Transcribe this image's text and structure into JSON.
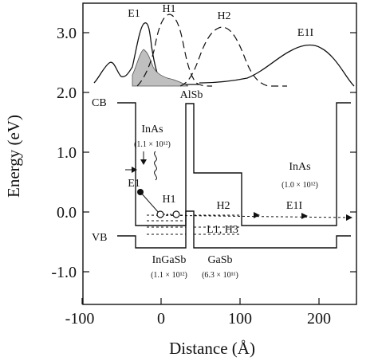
{
  "figure": {
    "ylabel": "Energy (eV)",
    "xlabel": "Distance (Å)",
    "yticks": [
      "3.0",
      "2.0",
      "1.0",
      "0.0",
      "-1.0"
    ],
    "xticks": [
      "-100",
      "0",
      "100",
      "200"
    ],
    "band_labels": {
      "cb": "CB",
      "vb": "VB"
    },
    "wavefunction_labels": {
      "e1": "E1",
      "h1": "H1",
      "h2": "H2",
      "e1i": "E1I"
    },
    "layers": {
      "alsb": "AlSb",
      "inas_left": "InAs",
      "inas_left_density": "(1.1 × 10¹²)",
      "inas_right": "InAs",
      "inas_right_density": "(1.0 × 10¹²)",
      "ingasb": "InGaSb",
      "ingasb_density": "(1.1 × 10¹²)",
      "gasb": "GaSb",
      "gasb_density": "(6.3 × 10¹¹)"
    },
    "level_labels": {
      "e1": "E1",
      "h1": "H1",
      "h2": "H2",
      "l1h3": "L1, H3",
      "e1i": "E1I"
    }
  },
  "chart_data": {
    "type": "line",
    "xlabel": "Distance (Å)",
    "ylabel": "Energy (eV)",
    "xlim": [
      -100,
      240
    ],
    "ylim": [
      -1.4,
      3.4
    ],
    "series": [
      {
        "name": "CB",
        "x": [
          -30,
          -30,
          32,
          32,
          42,
          42,
          104,
          104,
          220,
          220
        ],
        "y": [
          2.0,
          0.28,
          0.28,
          1.9,
          1.9,
          0.66,
          0.66,
          -0.18,
          -0.18,
          2.0
        ]
      },
      {
        "name": "VB",
        "x": [
          -30,
          -30,
          32,
          32,
          42,
          42,
          104,
          104,
          220,
          220
        ],
        "y": [
          -0.4,
          -0.58,
          -0.58,
          0.06,
          0.06,
          -0.58,
          -0.58,
          -0.58,
          -0.58,
          -0.4
        ]
      },
      {
        "name": "E1I level",
        "x": [
          -30,
          220
        ],
        "y": [
          -0.1,
          -0.1
        ]
      },
      {
        "name": "E1",
        "x": [
          -70,
          -55,
          -45,
          -30,
          -20,
          -12,
          -6,
          0,
          10,
          20,
          30
        ],
        "y": [
          2.05,
          2.35,
          2.2,
          2.45,
          3.0,
          3.2,
          2.8,
          2.3,
          2.1,
          2.05,
          2.0
        ]
      },
      {
        "name": "H1",
        "x": [
          -20,
          -10,
          0,
          10,
          20,
          30,
          40,
          50
        ],
        "y": [
          2.0,
          2.3,
          2.9,
          3.25,
          2.9,
          2.3,
          2.05,
          2.0
        ]
      },
      {
        "name": "H2",
        "x": [
          30,
          45,
          60,
          75,
          90,
          105,
          120
        ],
        "y": [
          2.0,
          2.35,
          2.85,
          3.05,
          2.85,
          2.3,
          2.0
        ]
      },
      {
        "name": "E1I",
        "x": [
          100,
          130,
          155,
          170,
          185,
          210,
          230
        ],
        "y": [
          2.05,
          2.35,
          2.75,
          2.85,
          2.75,
          2.2,
          2.0
        ]
      }
    ]
  }
}
